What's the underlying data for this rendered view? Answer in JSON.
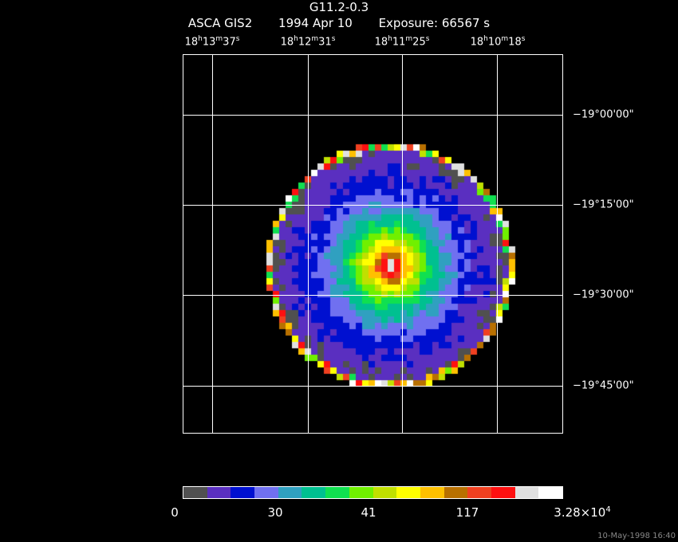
{
  "header": {
    "object": "G11.2-0.3",
    "instrument": "ASCA GIS2",
    "date": "1994 Apr 10",
    "exposure": "Exposure: 66567 s"
  },
  "ra_labels": [
    {
      "h": "18",
      "m": "13",
      "s": "37"
    },
    {
      "h": "18",
      "m": "12",
      "s": "31"
    },
    {
      "h": "18",
      "m": "11",
      "s": "25"
    },
    {
      "h": "18",
      "m": "10",
      "s": "18"
    }
  ],
  "dec_labels": [
    "−19°00'00\"",
    "−19°15'00\"",
    "−19°30'00\"",
    "−19°45'00\""
  ],
  "colorbar": {
    "colors": [
      "#505050",
      "#5a2fc0",
      "#0010d0",
      "#7070f0",
      "#30a0c0",
      "#00c090",
      "#10e050",
      "#70f000",
      "#c0e000",
      "#ffff00",
      "#ffc000",
      "#b87000",
      "#f04020",
      "#ff1010",
      "#e0e0e0",
      "#ffffff"
    ],
    "labels": [
      "0",
      "30",
      "41",
      "117",
      "3.28×10"
    ],
    "exponent": "4"
  },
  "timestamp": "10-May-1998 16:40"
}
